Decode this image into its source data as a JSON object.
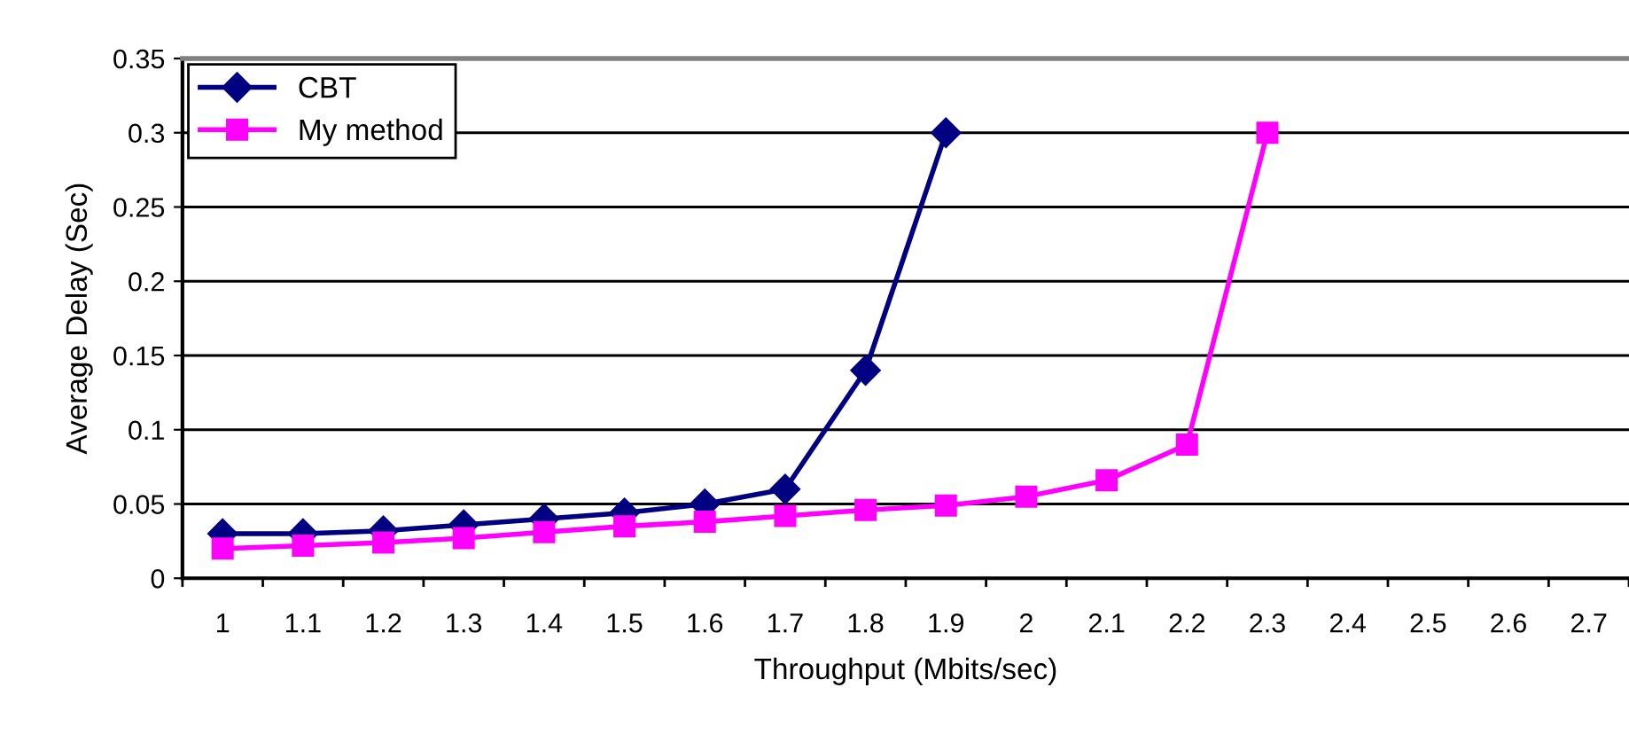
{
  "chart_data": {
    "type": "line",
    "xlabel": "Throughput (Mbits/sec)",
    "ylabel": "Average Delay (Sec)",
    "categories": [
      "1",
      "1.1",
      "1.2",
      "1.3",
      "1.4",
      "1.5",
      "1.6",
      "1.7",
      "1.8",
      "1.9",
      "2",
      "2.1",
      "2.2",
      "2.3",
      "2.4",
      "2.5",
      "2.6",
      "2.7"
    ],
    "series": [
      {
        "name": "CBT",
        "color": "#000080",
        "marker": "diamond",
        "values": [
          0.03,
          0.03,
          0.032,
          0.036,
          0.04,
          0.044,
          0.05,
          0.06,
          0.14,
          0.3,
          null,
          null,
          null,
          null,
          null,
          null,
          null,
          null
        ]
      },
      {
        "name": "My method",
        "color": "#ff00ff",
        "marker": "square",
        "values": [
          0.02,
          0.022,
          0.024,
          0.027,
          0.031,
          0.035,
          0.038,
          0.042,
          0.046,
          0.049,
          0.055,
          0.066,
          0.09,
          0.3,
          null,
          null,
          null,
          null
        ]
      }
    ],
    "ylim": [
      0,
      0.35
    ],
    "yticks": [
      0,
      0.05,
      0.1,
      0.15,
      0.2,
      0.25,
      0.3,
      0.35
    ],
    "grid": "y",
    "legend": "top left",
    "line_style": "solid"
  }
}
